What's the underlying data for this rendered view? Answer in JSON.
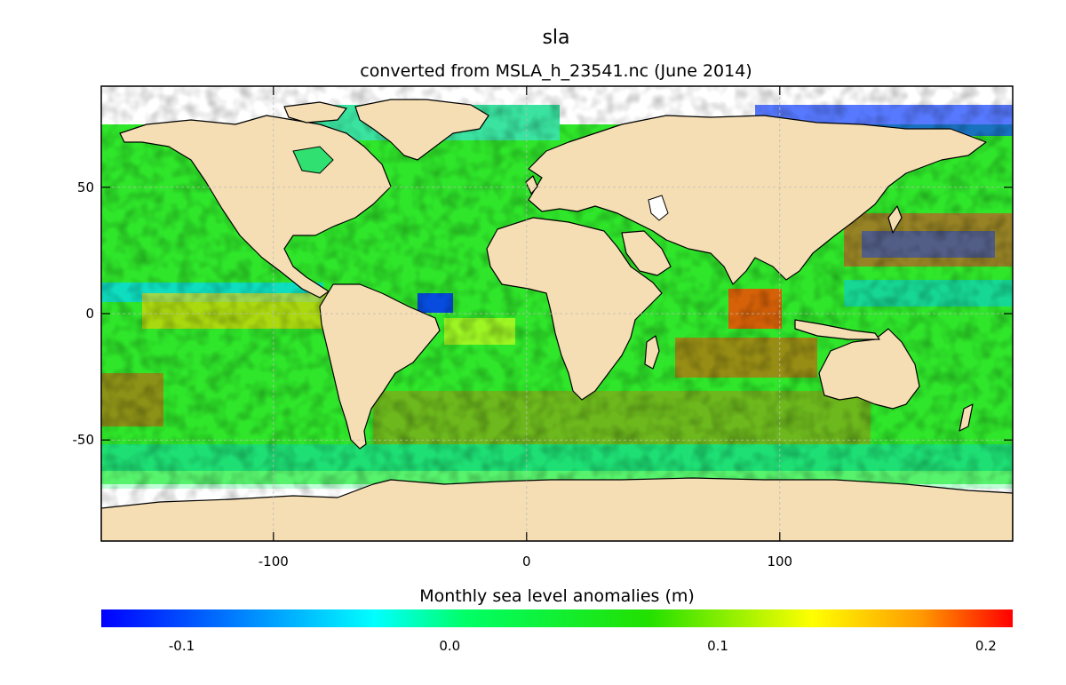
{
  "map": {
    "title": "sla",
    "subtitle": "converted from MSLA_h_23541.nc (June 2014)",
    "x_ticks": [
      {
        "value": -100,
        "label": "-100"
      },
      {
        "value": 0,
        "label": "0"
      },
      {
        "value": 100,
        "label": "100"
      }
    ],
    "y_ticks": [
      {
        "value": 50,
        "label": "50"
      },
      {
        "value": 0,
        "label": "0"
      },
      {
        "value": -50,
        "label": "-50"
      }
    ],
    "lon_range": [
      -168,
      192
    ],
    "lat_range": [
      -90,
      90
    ],
    "gridlines": true,
    "land_color": "#f5deb3",
    "no_data_color": "#ffffff",
    "colorbar": {
      "label": "Monthly sea level anomalies (m)",
      "range": [
        -0.13,
        0.21
      ],
      "ticks": [
        {
          "value": -0.1,
          "label": "-0.1"
        },
        {
          "value": 0.0,
          "label": "0.0"
        },
        {
          "value": 0.1,
          "label": "0.1"
        },
        {
          "value": 0.2,
          "label": "0.2"
        }
      ],
      "colormap": [
        "#0000ff",
        "#00ffff",
        "#00ff00",
        "#ffff00",
        "#ff0000"
      ]
    }
  }
}
